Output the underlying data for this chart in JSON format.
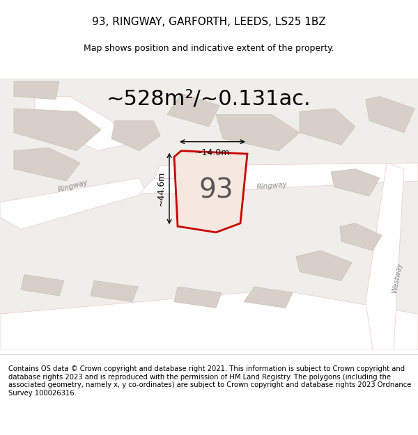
{
  "title": "93, RINGWAY, GARFORTH, LEEDS, LS25 1BZ",
  "subtitle": "Map shows position and indicative extent of the property.",
  "area_text": "~528m²/~0.131ac.",
  "label_93": "93",
  "dim_width": "~14.0m",
  "dim_height": "~44.6m",
  "footer": "Contains OS data © Crown copyright and database right 2021. This information is subject to Crown copyright and database rights 2023 and is reproduced with the permission of HM Land Registry. The polygons (including the associated geometry, namely x, y co-ordinates) are subject to Crown copyright and database rights 2023 Ordnance Survey 100026316.",
  "bg_color": "#f0eeea",
  "map_bg": "#f0eeea",
  "road_color": "#ffffff",
  "road_stroke": "#e8c8c8",
  "building_fill": "#d8d0c8",
  "building_stroke": "#c8bfb5",
  "plot_fill": "#f5e8e0",
  "plot_stroke": "#cc0000",
  "title_fontsize": 11,
  "subtitle_fontsize": 9,
  "area_fontsize": 22,
  "label_fontsize": 28,
  "dim_fontsize": 9,
  "footer_fontsize": 7.2
}
